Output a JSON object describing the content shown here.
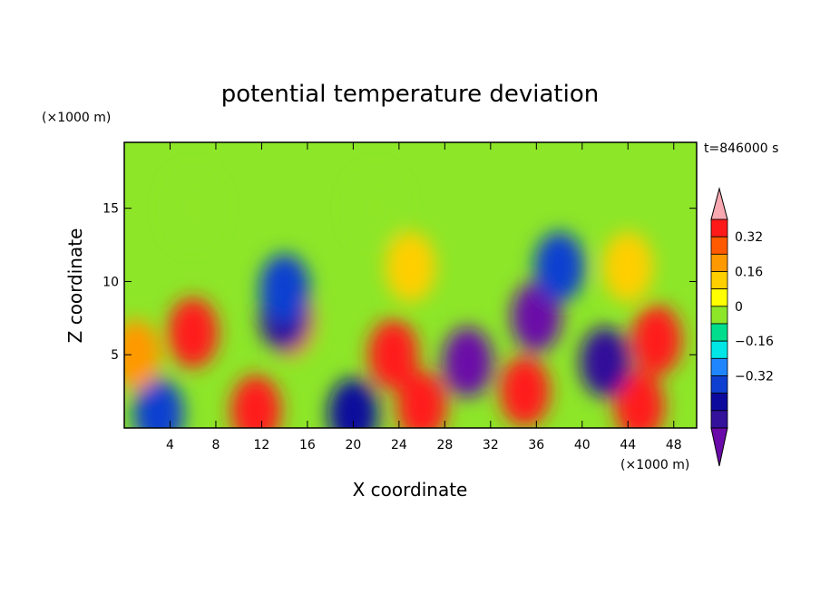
{
  "chart_data": {
    "type": "heatmap",
    "title": "potential temperature deviation",
    "xlabel": "X coordinate",
    "ylabel": "Z coordinate",
    "x_unit": "(×1000 m)",
    "y_unit": "(×1000 m)",
    "time_label": "t=846000 s",
    "xlim": [
      0,
      50
    ],
    "ylim": [
      0,
      19.5
    ],
    "x_ticks": [
      4,
      8,
      12,
      16,
      20,
      24,
      28,
      32,
      36,
      40,
      44,
      48
    ],
    "y_ticks": [
      5,
      10,
      15
    ],
    "colorbar": {
      "levels": [
        -0.48,
        -0.4,
        -0.32,
        -0.24,
        -0.16,
        -0.08,
        0,
        0.08,
        0.16,
        0.24,
        0.32,
        0.4
      ],
      "labeled_values": [
        0.32,
        0.16,
        0,
        -0.16,
        -0.32
      ],
      "labels": [
        "0.32",
        "0.16",
        "0",
        "−0.16",
        "−0.32"
      ],
      "colors": [
        "#6a0aa8",
        "#33119a",
        "#0c0a9c",
        "#0e3fd0",
        "#1f86ff",
        "#00e5e5",
        "#00dd8c",
        "#8de628",
        "#ffff00",
        "#ffcf00",
        "#ff9900",
        "#ff5a00",
        "#ff1a1a",
        "#f7a8b0"
      ]
    },
    "anomalies": [
      {
        "x": 6,
        "z": 6.5,
        "value": 0.5
      },
      {
        "x": 23.5,
        "z": 5,
        "value": 0.5
      },
      {
        "x": 46.5,
        "z": 6,
        "value": 0.5
      },
      {
        "x": 45,
        "z": 1.5,
        "value": 0.45
      },
      {
        "x": 11.5,
        "z": 1.2,
        "value": 0.45
      },
      {
        "x": 14.5,
        "z": 7.2,
        "value": 0.3
      },
      {
        "x": 30,
        "z": 4.5,
        "value": -0.5
      },
      {
        "x": 36,
        "z": 7.6,
        "value": -0.5
      },
      {
        "x": 42,
        "z": 4.5,
        "value": -0.45
      },
      {
        "x": 14,
        "z": 7.6,
        "value": -0.45
      },
      {
        "x": 38,
        "z": 11,
        "value": -0.3
      },
      {
        "x": 14,
        "z": 9.5,
        "value": -0.25
      },
      {
        "x": 20,
        "z": 1,
        "value": -0.4
      },
      {
        "x": 3,
        "z": 1,
        "value": -0.3
      },
      {
        "x": 26,
        "z": 1.5,
        "value": 0.4
      },
      {
        "x": 35,
        "z": 2.5,
        "value": 0.4
      },
      {
        "x": 1,
        "z": 5,
        "value": 0.3
      },
      {
        "x": 44,
        "z": 11,
        "value": 0.16
      },
      {
        "x": 25,
        "z": 11,
        "value": 0.16
      },
      {
        "x": 6,
        "z": 15,
        "value": 0.04
      },
      {
        "x": 22,
        "z": 15,
        "value": 0.03
      }
    ]
  }
}
